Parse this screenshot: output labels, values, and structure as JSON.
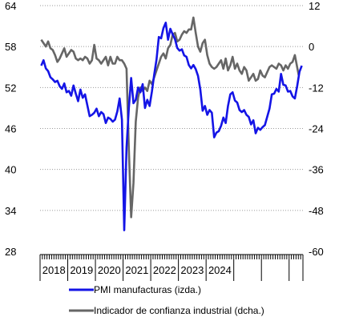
{
  "chart_data": {
    "type": "line",
    "title": "",
    "xlabel": "",
    "x_start": "2018-01",
    "x_end": "2024-09",
    "years": [
      "2018",
      "2019",
      "2020",
      "2021",
      "2022",
      "2023",
      "2024"
    ],
    "y_left": {
      "min": 28,
      "max": 64,
      "ticks": [
        28,
        34,
        40,
        46,
        52,
        58,
        64
      ]
    },
    "y_right": {
      "min": -60,
      "max": 12,
      "ticks": [
        -60,
        -48,
        -36,
        -24,
        -12,
        0,
        12
      ]
    },
    "grid": true,
    "legend_position": "bottom",
    "series": [
      {
        "name": "PMI manufacturas (izda.)",
        "axis": "left",
        "color": "#1414e6",
        "values": [
          55.2,
          56.0,
          54.8,
          54.4,
          53.5,
          53.2,
          52.8,
          53.0,
          52.2,
          51.8,
          52.6,
          51.3,
          51.5,
          50.8,
          52.3,
          51.1,
          50.0,
          51.7,
          50.5,
          51.0,
          49.4,
          47.8,
          48.0,
          48.3,
          48.9,
          47.8,
          48.4,
          48.1,
          46.8,
          47.6,
          47.4,
          47.0,
          47.3,
          48.5,
          50.4,
          47.3,
          31.1,
          43.2,
          49.0,
          53.4,
          49.7,
          50.2,
          52.0,
          51.3,
          52.5,
          49.0,
          50.2,
          49.3,
          51.4,
          53.9,
          56.1,
          59.4,
          59.2,
          60.7,
          61.5,
          59.0,
          60.6,
          59.8,
          59.1,
          57.8,
          57.4,
          57.6,
          56.7,
          56.5,
          55.3,
          54.8,
          55.3,
          54.7,
          53.7,
          51.7,
          48.6,
          49.3,
          48.0,
          48.7,
          48.3,
          44.7,
          45.4,
          45.6,
          46.4,
          47.6,
          46.8,
          49.3,
          51.0,
          51.3,
          50.1,
          49.8,
          48.7,
          48.4,
          48.7,
          48.0,
          47.7,
          46.6,
          47.2,
          45.3,
          46.1,
          45.8,
          46.2,
          46.5,
          47.7,
          48.9,
          51.0,
          51.1,
          51.8,
          51.4,
          54.0,
          52.4,
          52.3,
          51.4,
          51.5,
          50.7,
          50.4,
          52.2,
          54.3,
          55.2
        ]
      },
      {
        "name": "Indicador de confianza industrial (dcha.)",
        "axis": "right",
        "color": "#666666",
        "values": [
          2.0,
          1.0,
          0.0,
          1.5,
          -0.5,
          -1.0,
          -2.5,
          -4.5,
          -3.5,
          -2.0,
          -0.5,
          -3.0,
          -2.0,
          -1.0,
          -1.5,
          -3.5,
          -4.0,
          -3.5,
          -4.0,
          -3.0,
          -3.5,
          -5.0,
          -4.0,
          0.5,
          -3.5,
          -4.0,
          -5.0,
          -4.0,
          -3.0,
          -5.5,
          -3.0,
          -5.0,
          -5.0,
          -3.0,
          -4.0,
          -4.0,
          -5.0,
          -6.5,
          -30.0,
          -50.0,
          -40.0,
          -22.0,
          -15.0,
          -12.0,
          -13.0,
          -12.0,
          -13.0,
          -10.0,
          -11.0,
          -9.0,
          -7.0,
          -5.0,
          -3.0,
          -2.0,
          -3.5,
          -0.5,
          0.5,
          3.5,
          4.0,
          1.5,
          2.0,
          3.5,
          4.5,
          4.0,
          5.0,
          5.0,
          8.5,
          4.0,
          0.0,
          -1.5,
          1.0,
          2.0,
          -2.5,
          -5.0,
          -6.0,
          -6.5,
          -6.0,
          -5.0,
          -4.0,
          -6.5,
          -3.5,
          -7.0,
          -5.5,
          -3.0,
          -6.5,
          -5.0,
          -7.0,
          -8.0,
          -6.0,
          -7.0,
          -10.0,
          -9.0,
          -8.0,
          -10.0,
          -9.5,
          -7.0,
          -8.5,
          -9.0,
          -7.5,
          -6.0,
          -5.5,
          -6.0,
          -6.5,
          -5.0,
          -5.5,
          -7.0,
          -5.5,
          -6.5,
          -5.0,
          -4.5,
          -2.5,
          -8.5
        ]
      }
    ]
  }
}
